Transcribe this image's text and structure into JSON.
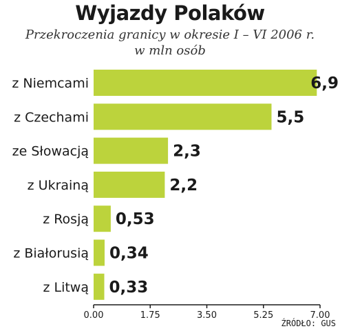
{
  "chart_data": {
    "type": "bar",
    "orientation": "horizontal",
    "title": "Wyjazdy Polaków",
    "subtitle": [
      "Przekroczenia granicy w okresie I – VI 2006 r.",
      "w mln osób"
    ],
    "categories": [
      "z Niemcami",
      "z Czechami",
      "ze Słowacją",
      "z Ukrainą",
      "z Rosją",
      "z Białorusią",
      "z Litwą"
    ],
    "values": [
      6.9,
      5.5,
      2.3,
      2.2,
      0.53,
      0.34,
      0.33
    ],
    "value_labels": [
      "6,9",
      "5,5",
      "2,3",
      "2,2",
      "0,53",
      "0,34",
      "0,33"
    ],
    "xlim": [
      0,
      7
    ],
    "xticks": [
      0,
      1.75,
      3.5,
      5.25,
      7
    ],
    "xtick_labels": [
      "0.00",
      "1.75",
      "3.50",
      "5.25",
      "7.00"
    ],
    "grid": false,
    "legend": "none",
    "bar_color": "#bcd33c",
    "source": "ŹRÓDŁO: GUS"
  }
}
